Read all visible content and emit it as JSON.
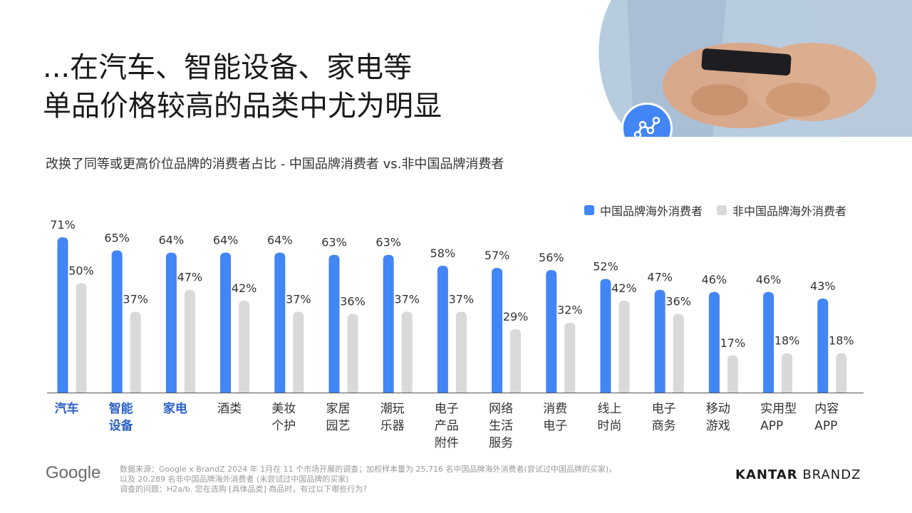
{
  "title_lines": [
    "...在汽车、智能设备、家电等",
    "单品价格较高的品类中尤为明显"
  ],
  "subtitle": "改换了同等或更高价位品牌的消费者占比 - 中国品牌消费者 vs.非中国品牌消费者",
  "colors": {
    "series1": "#4285f4",
    "series2": "#d9d9d9",
    "highlight": "#2b61c6",
    "icon_bg": "#4285f4"
  },
  "chart_data": {
    "type": "bar",
    "categories": [
      "汽车",
      "智能设备",
      "家电",
      "酒类",
      "美妆个护",
      "家居园艺",
      "潮玩乐器",
      "电子产品附件",
      "网络生活服务",
      "消费电子",
      "线上时尚",
      "电子商务",
      "移动游戏",
      "实用型APP",
      "内容APP"
    ],
    "category_label_lines": [
      [
        "汽车"
      ],
      [
        "智能",
        "设备"
      ],
      [
        "家电"
      ],
      [
        "酒类"
      ],
      [
        "美妆",
        "个护"
      ],
      [
        "家居",
        "园艺"
      ],
      [
        "潮玩",
        "乐器"
      ],
      [
        "电子",
        "产品",
        "附件"
      ],
      [
        "网络",
        "生活",
        "服务"
      ],
      [
        "消费",
        "电子"
      ],
      [
        "线上",
        "时尚"
      ],
      [
        "电子",
        "商务"
      ],
      [
        "移动",
        "游戏"
      ],
      [
        "实用型",
        "APP"
      ],
      [
        "内容",
        "APP"
      ]
    ],
    "highlighted_categories": [
      "汽车",
      "智能设备",
      "家电"
    ],
    "series": [
      {
        "name": "中国品牌海外消费者",
        "values": [
          71,
          65,
          64,
          64,
          64,
          63,
          63,
          58,
          57,
          56,
          52,
          47,
          46,
          46,
          43
        ]
      },
      {
        "name": "非中国品牌海外消费者",
        "values": [
          50,
          37,
          47,
          42,
          37,
          36,
          37,
          37,
          29,
          32,
          42,
          36,
          17,
          18,
          18
        ]
      }
    ],
    "value_suffix": "%",
    "ylim": [
      0,
      80
    ],
    "legend_position": "top-right",
    "grid": false
  },
  "footer": {
    "google_logo": "Google",
    "source_lines": [
      "数据来源：Google x BrandZ 2024 年 1月在 11 个市场开展的调查；加权样本量为 25,716 名中国品牌海外消费者(尝试过中国品牌的买家)，",
      "以及 20,289 名非中国品牌海外消费者 (未尝试过中国品牌的买家)",
      "调查的问题：H2a/b. 您在选购 [具体品类] 商品时，有过以下哪些行为?"
    ],
    "kantar_bold": "KANTAR",
    "kantar_rest": "BRANDZ"
  }
}
